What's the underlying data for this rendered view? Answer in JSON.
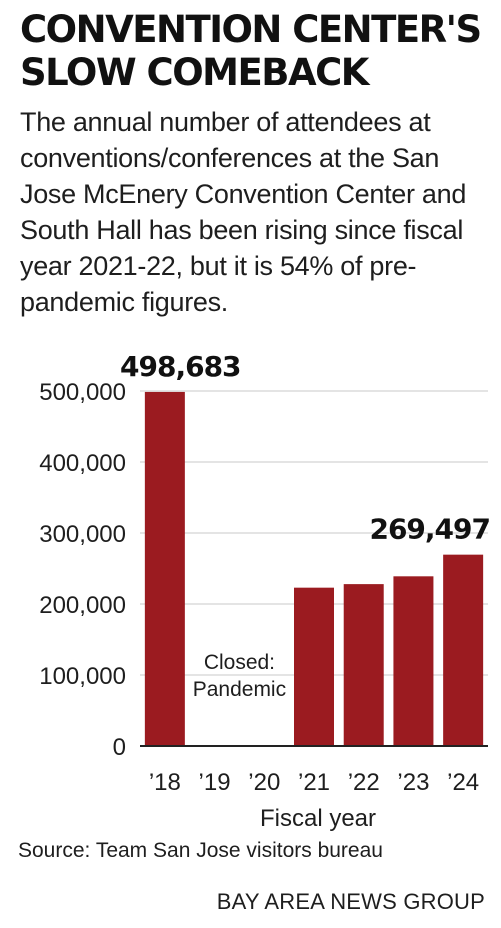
{
  "title": "Convention Center's slow comeback",
  "subtitle": "The annual number of attendees at conventions/conferences at the San Jose McEnery Convention Center and South Hall has been rising since fiscal year 2021-22, but it is 54% of pre-pandemic figures.",
  "source": "Source: Team San Jose visitors bureau",
  "credit": "BAY AREA NEWS GROUP",
  "colors": {
    "bar": "#9b1b20",
    "grid": "#c8c8c8",
    "axis": "#222222"
  },
  "chart_data": {
    "type": "bar",
    "categories": [
      "’18",
      "’19",
      "’20",
      "’21",
      "’22",
      "’23",
      "’24"
    ],
    "values": [
      498683,
      0,
      0,
      223000,
      228000,
      239000,
      269497
    ],
    "xlabel": "Fiscal year",
    "ylabel": "",
    "ylim": [
      0,
      500000
    ],
    "yticks": [
      0,
      100000,
      200000,
      300000,
      400000,
      500000
    ],
    "ytick_labels": [
      "0",
      "100,000",
      "200,000",
      "300,000",
      "400,000",
      "500,000"
    ],
    "data_labels": [
      {
        "category": "’18",
        "text": "498,683"
      },
      {
        "category": "’24",
        "text": "269,497"
      }
    ],
    "annotation": {
      "lines": [
        "Closed:",
        "Pandemic"
      ],
      "categories": [
        "’19",
        "’20"
      ]
    },
    "grid": true,
    "legend": "none"
  }
}
